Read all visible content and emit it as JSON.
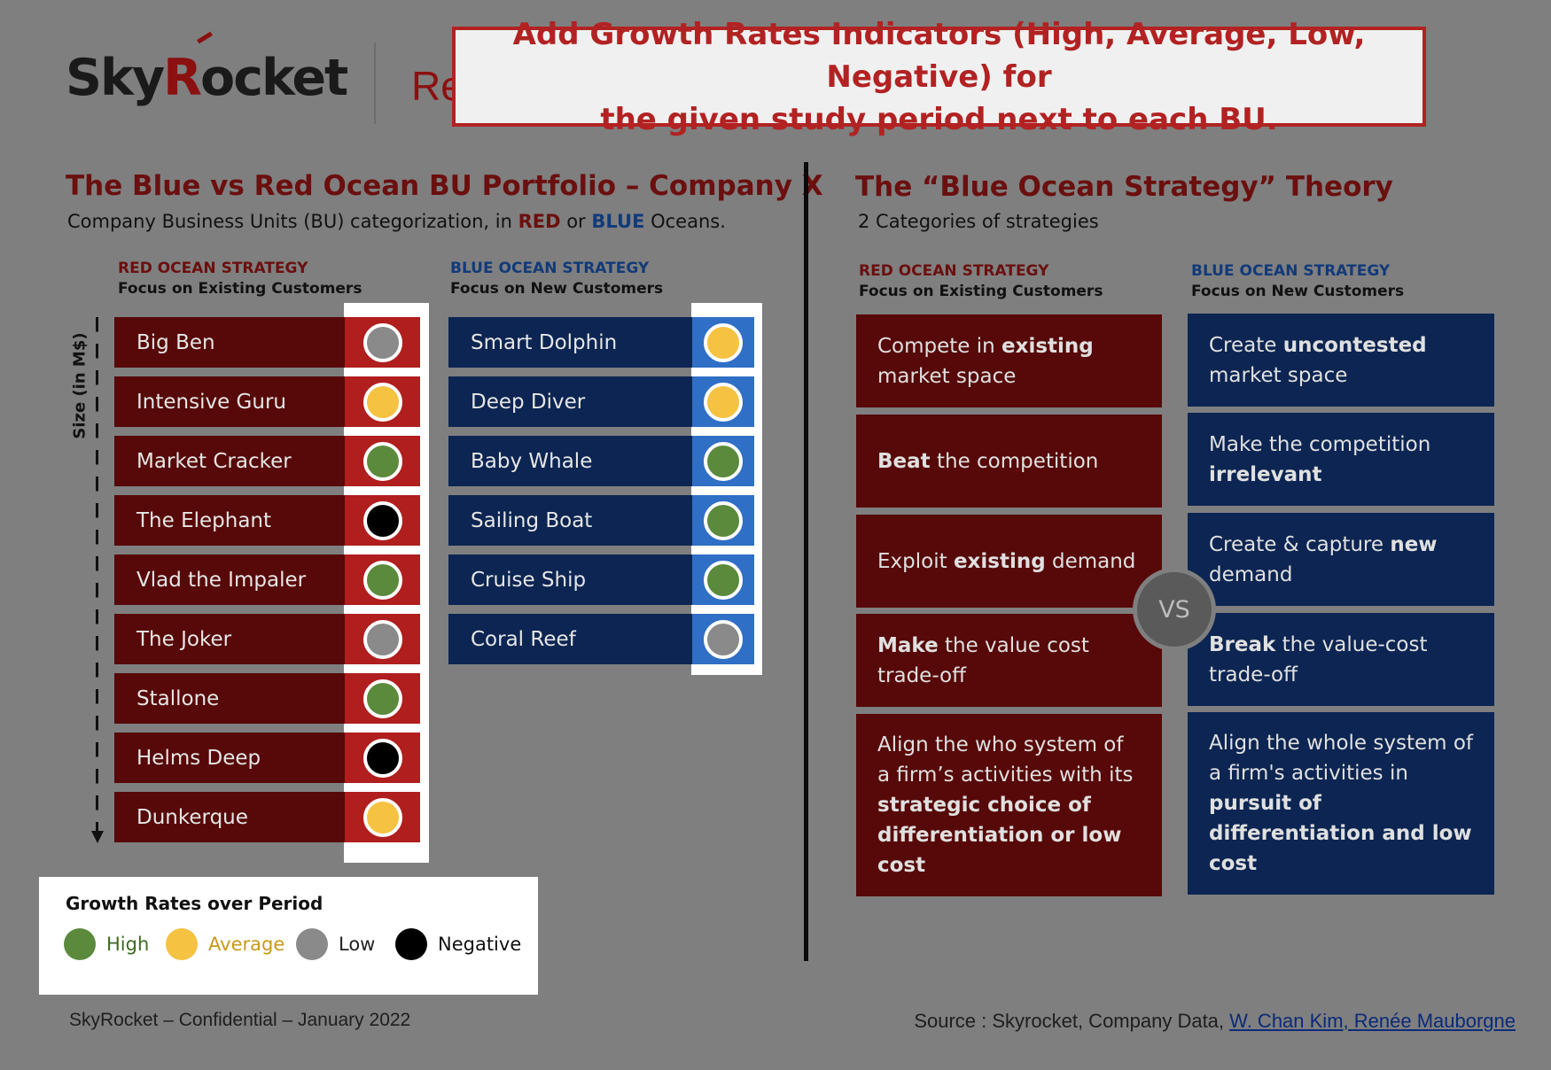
{
  "header": {
    "logo_text_a": "Sky",
    "logo_text_r": "R",
    "logo_text_b": "ocket",
    "subtitle_peek": "Re",
    "callout_line1": "Add Growth Rates Indicators (High, Average, Low, Negative) for",
    "callout_line2": "the given study period next to each BU."
  },
  "left": {
    "title": "The Blue vs Red Ocean BU Portfolio – Company X",
    "subtitle_pre": "Company Business Units (BU) categorization, in ",
    "subtitle_red": "RED",
    "subtitle_mid": " or ",
    "subtitle_blue": "BLUE",
    "subtitle_post": " Oceans.",
    "red_header": "RED OCEAN STRATEGY",
    "red_subheader": "Focus on Existing Customers",
    "blue_header": "BLUE OCEAN STRATEGY",
    "blue_subheader": "Focus on New Customers",
    "size_label": "Size (in M$)",
    "red_bus": [
      {
        "name": "Big Ben",
        "growth": "Low"
      },
      {
        "name": "Intensive Guru",
        "growth": "Average"
      },
      {
        "name": "Market Cracker",
        "growth": "High"
      },
      {
        "name": "The Elephant",
        "growth": "Negative"
      },
      {
        "name": "Vlad the Impaler",
        "growth": "High"
      },
      {
        "name": "The Joker",
        "growth": "Low"
      },
      {
        "name": "Stallone",
        "growth": "High"
      },
      {
        "name": "Helms Deep",
        "growth": "Negative"
      },
      {
        "name": "Dunkerque",
        "growth": "Average"
      }
    ],
    "blue_bus": [
      {
        "name": "Smart Dolphin",
        "growth": "Average"
      },
      {
        "name": "Deep Diver",
        "growth": "Average"
      },
      {
        "name": "Baby Whale",
        "growth": "High"
      },
      {
        "name": "Sailing Boat",
        "growth": "High"
      },
      {
        "name": "Cruise Ship",
        "growth": "High"
      },
      {
        "name": "Coral Reef",
        "growth": "Low"
      }
    ]
  },
  "legend": {
    "title": "Growth Rates over Period",
    "items": [
      {
        "label": "High",
        "color": "#5b8a3c",
        "text_color": "#3d6b22"
      },
      {
        "label": "Average",
        "color": "#f5c242",
        "text_color": "#c89a1a"
      },
      {
        "label": "Low",
        "color": "#8a8a8a",
        "text_color": "#222222"
      },
      {
        "label": "Negative",
        "color": "#000000",
        "text_color": "#111111"
      }
    ]
  },
  "growth_colors": {
    "High": "#5b8a3c",
    "Average": "#f5c242",
    "Low": "#8a8a8a",
    "Negative": "#000000"
  },
  "right": {
    "title": "The “Blue Ocean Strategy” Theory",
    "subtitle": "2 Categories of strategies",
    "red_header": "RED OCEAN STRATEGY",
    "red_subheader": "Focus on Existing Customers",
    "blue_header": "BLUE OCEAN STRATEGY",
    "blue_subheader": "Focus on New Customers",
    "vs_label": "VS",
    "red_boxes": [
      [
        {
          "t": "Compete in "
        },
        {
          "t": "existing",
          "b": true
        },
        {
          "t": " market space"
        }
      ],
      [
        {
          "t": "Beat",
          "b": true
        },
        {
          "t": " the competition"
        }
      ],
      [
        {
          "t": "Exploit "
        },
        {
          "t": "existing",
          "b": true
        },
        {
          "t": " demand"
        }
      ],
      [
        {
          "t": "Make",
          "b": true
        },
        {
          "t": " the value cost trade-off"
        }
      ],
      [
        {
          "t": "Align the who system of a firm’s activities with its "
        },
        {
          "t": "strategic choice of differentiation or low cost",
          "b": true
        }
      ]
    ],
    "blue_boxes": [
      [
        {
          "t": "Create "
        },
        {
          "t": "uncontested",
          "b": true
        },
        {
          "t": " market space"
        }
      ],
      [
        {
          "t": "Make the competition "
        },
        {
          "t": "irrelevant",
          "b": true
        }
      ],
      [
        {
          "t": "Create & capture "
        },
        {
          "t": "new",
          "b": true
        },
        {
          "t": " demand"
        }
      ],
      [
        {
          "t": "Break",
          "b": true
        },
        {
          "t": " the value-cost trade-off"
        }
      ],
      [
        {
          "t": "Align the whole system of a firm's activities in "
        },
        {
          "t": "pursuit of differentiation and low cost",
          "b": true
        }
      ]
    ]
  },
  "footer": {
    "left": "SkyRocket – Confidential – January 2022",
    "source_prefix": "Source : Skyrocket, Company Data, ",
    "source_link": "W. Chan Kim, Renée Mauborgne"
  }
}
